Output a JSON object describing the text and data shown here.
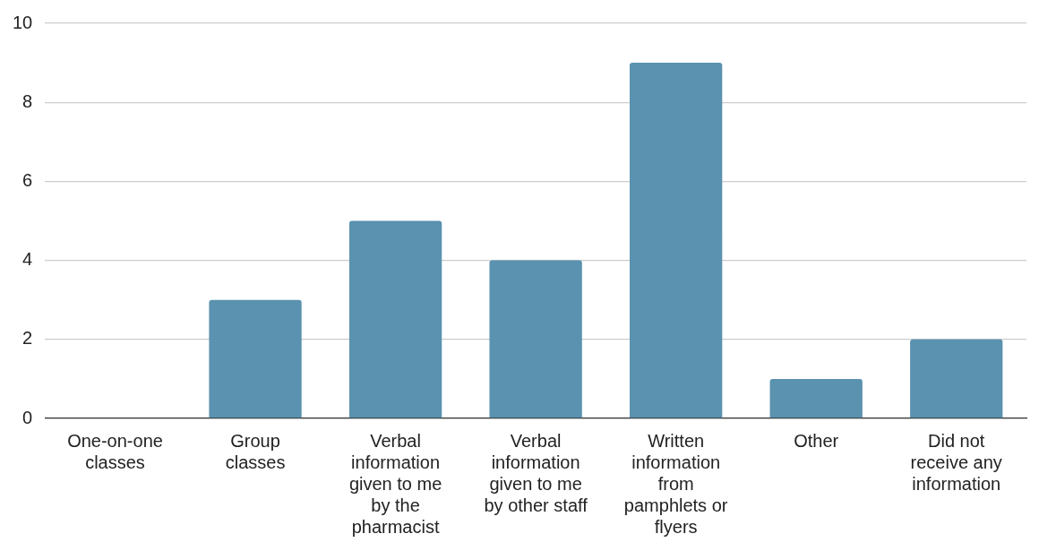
{
  "chart_data": {
    "type": "bar",
    "categories": [
      "One-on-one classes",
      "Group classes",
      "Verbal information given to me by the pharmacist",
      "Verbal information given to me by other staff",
      "Written information from pamphlets or flyers",
      "Other",
      "Did not receive any information"
    ],
    "values": [
      0,
      3,
      5,
      4,
      9,
      1,
      2
    ],
    "color": "#5a92af",
    "ylim": [
      0,
      10
    ],
    "yticks": [
      0,
      2,
      4,
      6,
      8,
      10
    ],
    "grid": "y",
    "legend": false
  }
}
